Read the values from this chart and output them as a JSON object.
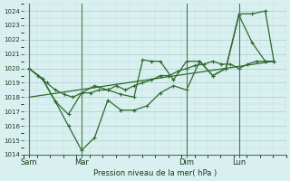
{
  "background_color": "#cce8e8",
  "plot_bg_color": "#d8f0f0",
  "grid_color": "#b0d8d8",
  "line_color": "#2d6a2d",
  "ylabel_text": "Pression niveau de la mer( hPa )",
  "ylim": [
    1014,
    1024.5
  ],
  "yticks": [
    1014,
    1015,
    1016,
    1017,
    1018,
    1019,
    1020,
    1021,
    1022,
    1023,
    1024
  ],
  "xtick_labels": [
    "Sam",
    "Mar",
    "Dim",
    "Lun"
  ],
  "xtick_positions": [
    0.0,
    2.0,
    6.0,
    8.0
  ],
  "vlines": [
    0.0,
    2.0,
    6.0,
    8.0
  ],
  "xlim": [
    -0.2,
    9.8
  ],
  "series1_x": [
    0.0,
    0.33,
    0.67,
    1.0,
    1.33,
    1.67,
    2.0,
    2.33,
    2.67,
    3.0,
    3.33,
    3.67,
    4.0,
    4.33,
    4.67,
    5.0,
    5.33,
    5.67,
    6.0,
    6.33,
    6.67,
    7.0,
    7.33,
    7.67,
    8.0,
    8.33,
    8.67,
    9.0,
    9.33
  ],
  "series1_y": [
    1020.0,
    1019.5,
    1019.0,
    1018.5,
    1018.2,
    1018.0,
    1018.3,
    1018.3,
    1018.5,
    1018.5,
    1018.8,
    1018.5,
    1018.8,
    1019.0,
    1019.2,
    1019.5,
    1019.5,
    1019.8,
    1020.0,
    1020.2,
    1020.3,
    1020.5,
    1020.3,
    1020.3,
    1020.0,
    1020.3,
    1020.5,
    1020.5,
    1020.5
  ],
  "series2_x": [
    0.0,
    0.5,
    1.0,
    1.5,
    2.0,
    2.5,
    3.0,
    3.5,
    4.0,
    4.33,
    4.67,
    5.0,
    5.5,
    6.0,
    6.5,
    7.0,
    7.5,
    8.0,
    8.5,
    9.0,
    9.33
  ],
  "series2_y": [
    1020.0,
    1019.3,
    1017.7,
    1016.8,
    1018.3,
    1018.8,
    1018.5,
    1018.2,
    1018.0,
    1020.6,
    1020.5,
    1020.5,
    1019.2,
    1020.5,
    1020.5,
    1019.5,
    1020.0,
    1023.8,
    1023.8,
    1024.0,
    1020.5
  ],
  "series3_x": [
    0.0,
    0.5,
    1.0,
    1.5,
    2.0,
    2.5,
    3.0,
    3.5,
    4.0,
    4.5,
    5.0,
    5.5,
    6.0,
    6.5,
    7.0,
    7.5,
    8.0,
    8.5,
    9.0,
    9.33
  ],
  "series3_y": [
    1020.0,
    1019.3,
    1017.7,
    1016.0,
    1014.3,
    1015.2,
    1017.8,
    1017.1,
    1017.1,
    1017.4,
    1018.3,
    1018.8,
    1018.5,
    1020.5,
    1019.5,
    1020.0,
    1023.7,
    1021.8,
    1020.5,
    1020.5
  ],
  "series4_x": [
    0.0,
    9.33
  ],
  "series4_y": [
    1018.0,
    1020.5
  ]
}
